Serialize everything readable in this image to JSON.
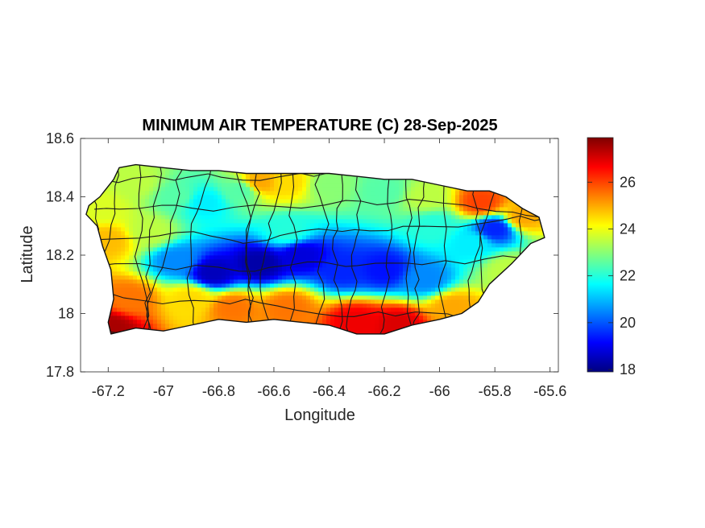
{
  "chart_data": {
    "type": "heatmap",
    "title": "MINIMUM AIR TEMPERATURE (C) 28-Sep-2025",
    "xlabel": "Longitude",
    "ylabel": "Latitude",
    "xlim": [
      -67.3,
      -65.57
    ],
    "ylim": [
      17.8,
      18.6
    ],
    "xticks": [
      -67.2,
      -67,
      -66.8,
      -66.6,
      -66.4,
      -66.2,
      -66,
      -65.8,
      -65.6
    ],
    "xtick_labels": [
      "-67.2",
      "-67",
      "-66.8",
      "-66.6",
      "-66.4",
      "-66.2",
      "-66",
      "-65.8",
      "-65.6"
    ],
    "yticks": [
      17.8,
      18,
      18.2,
      18.4,
      18.6
    ],
    "ytick_labels": [
      "17.8",
      "18",
      "18.2",
      "18.4",
      "18.6"
    ],
    "colorbar": {
      "range": [
        17.9,
        27.9
      ],
      "ticks": [
        18,
        20,
        22,
        24,
        26
      ],
      "tick_labels": [
        "18",
        "20",
        "22",
        "24",
        "26"
      ],
      "colormap": "jet"
    },
    "grid": false,
    "legend": "colorbar-right",
    "outline": [
      [
        -67.27,
        18.37
      ],
      [
        -67.23,
        18.4
      ],
      [
        -67.18,
        18.46
      ],
      [
        -67.16,
        18.5
      ],
      [
        -67.1,
        18.51
      ],
      [
        -67.0,
        18.5
      ],
      [
        -66.9,
        18.49
      ],
      [
        -66.8,
        18.49
      ],
      [
        -66.7,
        18.48
      ],
      [
        -66.6,
        18.48
      ],
      [
        -66.5,
        18.48
      ],
      [
        -66.4,
        18.48
      ],
      [
        -66.3,
        18.47
      ],
      [
        -66.2,
        18.46
      ],
      [
        -66.1,
        18.46
      ],
      [
        -66.0,
        18.44
      ],
      [
        -65.9,
        18.42
      ],
      [
        -65.82,
        18.42
      ],
      [
        -65.76,
        18.4
      ],
      [
        -65.7,
        18.36
      ],
      [
        -65.64,
        18.33
      ],
      [
        -65.62,
        18.26
      ],
      [
        -65.67,
        18.24
      ],
      [
        -65.74,
        18.17
      ],
      [
        -65.82,
        18.1
      ],
      [
        -65.86,
        18.04
      ],
      [
        -65.92,
        18.0
      ],
      [
        -66.0,
        17.98
      ],
      [
        -66.1,
        17.96
      ],
      [
        -66.2,
        17.93
      ],
      [
        -66.3,
        17.93
      ],
      [
        -66.4,
        17.96
      ],
      [
        -66.5,
        17.97
      ],
      [
        -66.6,
        17.98
      ],
      [
        -66.7,
        17.97
      ],
      [
        -66.8,
        17.98
      ],
      [
        -66.9,
        17.96
      ],
      [
        -67.0,
        17.94
      ],
      [
        -67.1,
        17.95
      ],
      [
        -67.19,
        17.93
      ],
      [
        -67.2,
        17.97
      ],
      [
        -67.18,
        18.05
      ],
      [
        -67.19,
        18.15
      ],
      [
        -67.22,
        18.23
      ],
      [
        -67.24,
        18.3
      ],
      [
        -67.28,
        18.34
      ]
    ],
    "temperature_field_points": [
      {
        "lon": -67.19,
        "lat": 17.95,
        "value": 27.5
      },
      {
        "lon": -67.12,
        "lat": 18.05,
        "value": 25.5
      },
      {
        "lon": -67.2,
        "lat": 18.25,
        "value": 24.8
      },
      {
        "lon": -67.22,
        "lat": 18.36,
        "value": 23.8
      },
      {
        "lon": -67.1,
        "lat": 18.45,
        "value": 23.5
      },
      {
        "lon": -66.95,
        "lat": 18.4,
        "value": 22.5
      },
      {
        "lon": -66.85,
        "lat": 18.38,
        "value": 21.5
      },
      {
        "lon": -66.72,
        "lat": 18.42,
        "value": 22.5
      },
      {
        "lon": -66.65,
        "lat": 18.45,
        "value": 25.0
      },
      {
        "lon": -66.55,
        "lat": 18.45,
        "value": 24.5
      },
      {
        "lon": -66.4,
        "lat": 18.44,
        "value": 23.0
      },
      {
        "lon": -66.2,
        "lat": 18.42,
        "value": 22.5
      },
      {
        "lon": -66.05,
        "lat": 18.4,
        "value": 23.5
      },
      {
        "lon": -65.85,
        "lat": 18.38,
        "value": 26.0
      },
      {
        "lon": -65.7,
        "lat": 18.33,
        "value": 25.0
      },
      {
        "lon": -65.8,
        "lat": 18.29,
        "value": 19.5
      },
      {
        "lon": -65.88,
        "lat": 18.24,
        "value": 21.5
      },
      {
        "lon": -66.02,
        "lat": 18.3,
        "value": 22.0
      },
      {
        "lon": -66.55,
        "lat": 18.28,
        "value": 22.0
      },
      {
        "lon": -66.95,
        "lat": 18.18,
        "value": 20.5
      },
      {
        "lon": -66.82,
        "lat": 18.14,
        "value": 18.5
      },
      {
        "lon": -66.65,
        "lat": 18.17,
        "value": 18.3
      },
      {
        "lon": -66.5,
        "lat": 18.2,
        "value": 18.8
      },
      {
        "lon": -66.35,
        "lat": 18.15,
        "value": 19.5
      },
      {
        "lon": -66.2,
        "lat": 18.15,
        "value": 19.3
      },
      {
        "lon": -66.05,
        "lat": 18.12,
        "value": 20.5
      },
      {
        "lon": -65.75,
        "lat": 18.15,
        "value": 23.5
      },
      {
        "lon": -66.9,
        "lat": 18.05,
        "value": 24.5
      },
      {
        "lon": -66.75,
        "lat": 18.02,
        "value": 25.5
      },
      {
        "lon": -66.55,
        "lat": 18.02,
        "value": 25.5
      },
      {
        "lon": -66.3,
        "lat": 17.97,
        "value": 26.8
      },
      {
        "lon": -66.15,
        "lat": 17.96,
        "value": 27.0
      },
      {
        "lon": -65.95,
        "lat": 18.02,
        "value": 25.0
      },
      {
        "lon": -67.05,
        "lat": 18.28,
        "value": 23.5
      }
    ]
  }
}
